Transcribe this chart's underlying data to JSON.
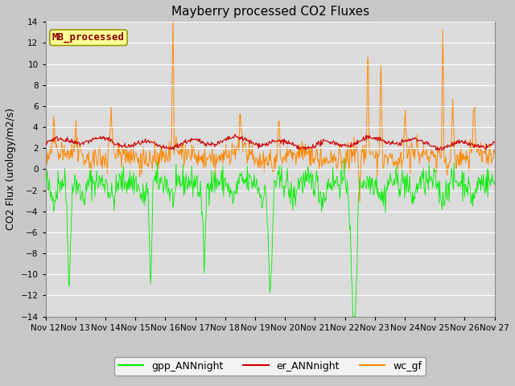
{
  "title": "Mayberry processed CO2 Fluxes",
  "ylabel": "CO2 Flux (urology/m2/s)",
  "ylim": [
    -14,
    14
  ],
  "yticks": [
    -14,
    -12,
    -10,
    -8,
    -6,
    -4,
    -2,
    0,
    2,
    4,
    6,
    8,
    10,
    12,
    14
  ],
  "xtick_labels": [
    "Nov 12",
    "Nov 13",
    "Nov 14",
    "Nov 15",
    "Nov 16",
    "Nov 17",
    "Nov 18",
    "Nov 19",
    "Nov 20",
    "Nov 21",
    "Nov 22",
    "Nov 23",
    "Nov 24",
    "Nov 25",
    "Nov 26",
    "Nov 27"
  ],
  "colors": {
    "gpp": "#00ee00",
    "er": "#cc0000",
    "wc": "#ff8800",
    "fig_bg": "#c8c8c8",
    "axes_bg": "#dcdcdc",
    "grid": "#ffffff",
    "label_box_bg": "#ffff99",
    "label_box_edge": "#999900",
    "label_text": "#880000"
  },
  "legend_labels": [
    "gpp_ANNnight",
    "er_ANNnight",
    "wc_gf"
  ],
  "annotation_text": "MB_processed",
  "figsize": [
    6.4,
    4.8
  ],
  "dpi": 100,
  "seed": 42
}
